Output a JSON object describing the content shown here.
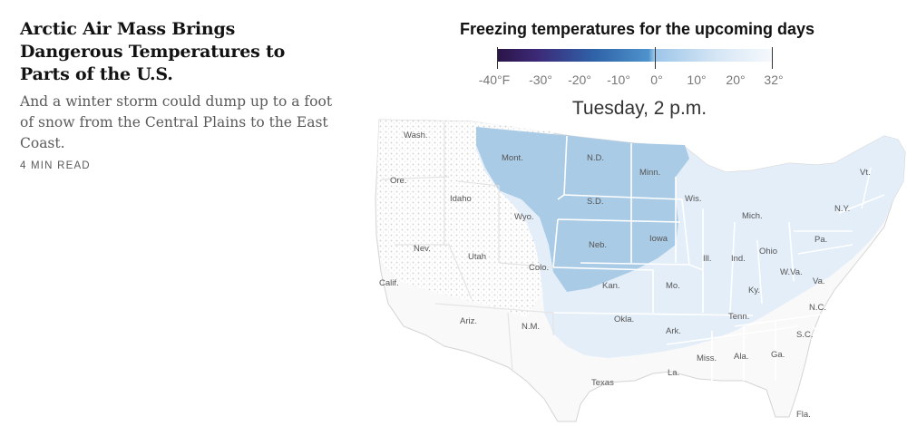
{
  "article": {
    "headline": "Arctic Air Mass Brings Dangerous Temperatures to Parts of the U.S.",
    "summary": "And a winter storm could dump up to a foot of snow from the Central Plains to the East Coast.",
    "read_time": "4 MIN READ"
  },
  "map": {
    "title": "Freezing temperatures for the upcoming days",
    "time_label": "Tuesday, 2 p.m.",
    "legend": {
      "labels": [
        "-40°F",
        "-30°",
        "-20°",
        "-10°",
        "0°",
        "10°",
        "20°",
        "32°"
      ],
      "colors": {
        "coldest": "#2b1448",
        "cold": "#2f62a8",
        "zero_band": "#9cc5e8",
        "freezing": "#f6f9fd"
      }
    },
    "state_labels": {
      "wash": "Wash.",
      "ore": "Ore.",
      "calif": "Calif.",
      "idaho": "Idaho",
      "nev": "Nev.",
      "mont": "Mont.",
      "wyo": "Wyo.",
      "utah": "Utah",
      "ariz": "Ariz.",
      "colo": "Colo.",
      "nm": "N.M.",
      "nd": "N.D.",
      "sd": "S.D.",
      "neb": "Neb.",
      "kan": "Kan.",
      "okla": "Okla.",
      "texas": "Texas",
      "minn": "Minn.",
      "iowa": "Iowa",
      "mo": "Mo.",
      "ark": "Ark.",
      "la": "La.",
      "wis": "Wis.",
      "ill": "Ill.",
      "mich": "Mich.",
      "ind": "Ind.",
      "ohio": "Ohio",
      "ky": "Ky.",
      "tenn": "Tenn.",
      "miss": "Miss.",
      "ala": "Ala.",
      "ga": "Ga.",
      "fla": "Fla.",
      "sc": "S.C.",
      "nc": "N.C.",
      "va": "Va.",
      "wva": "W.Va.",
      "pa": "Pa.",
      "ny": "N.Y.",
      "vt": "Vt."
    }
  }
}
